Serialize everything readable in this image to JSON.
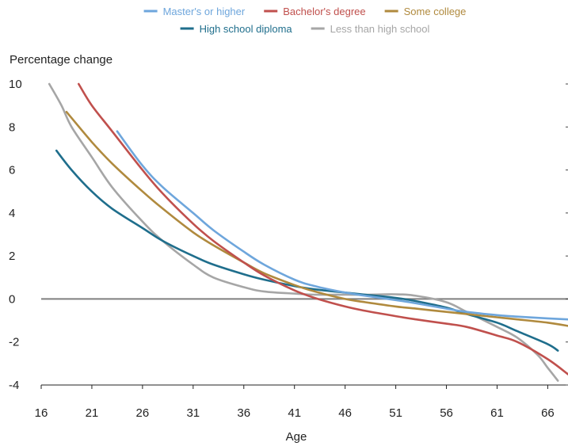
{
  "chart_data": {
    "type": "line",
    "title": "",
    "ylabel": "Percentage change",
    "xlabel": "Age",
    "xlim": [
      16,
      68
    ],
    "ylim": [
      -4,
      10
    ],
    "x_ticks": [
      16,
      21,
      26,
      31,
      36,
      41,
      46,
      51,
      56,
      61,
      66
    ],
    "y_ticks": [
      10,
      8,
      6,
      4,
      2,
      0,
      -2,
      -4
    ],
    "legend_position": "top-center",
    "grid": false,
    "zero_line": true,
    "series": [
      {
        "name": "Master's or higher",
        "color": "#6ea6dc",
        "x": [
          23.5,
          26,
          28,
          31,
          33,
          36,
          38,
          41,
          43,
          46,
          48,
          51,
          53,
          56,
          58,
          61,
          63,
          66,
          68
        ],
        "y": [
          7.8,
          6.2,
          5.2,
          4.0,
          3.2,
          2.2,
          1.6,
          0.9,
          0.6,
          0.3,
          0.15,
          -0.05,
          -0.2,
          -0.45,
          -0.6,
          -0.75,
          -0.82,
          -0.9,
          -0.95
        ]
      },
      {
        "name": "Bachelor's degree",
        "color": "#c0504d",
        "x": [
          19.7,
          21,
          23,
          26,
          28,
          31,
          33,
          36,
          38,
          41,
          43,
          46,
          48,
          51,
          53,
          56,
          58,
          61,
          63,
          66,
          68
        ],
        "y": [
          10.0,
          9.0,
          7.8,
          6.0,
          4.9,
          3.5,
          2.7,
          1.7,
          1.1,
          0.4,
          0.05,
          -0.35,
          -0.55,
          -0.8,
          -0.95,
          -1.15,
          -1.3,
          -1.7,
          -2.0,
          -2.8,
          -3.5
        ]
      },
      {
        "name": "Some college",
        "color": "#b08a3e",
        "x": [
          18.5,
          21,
          23,
          26,
          28,
          31,
          33,
          36,
          38,
          41,
          43,
          46,
          48,
          51,
          53,
          56,
          58,
          61,
          63,
          66,
          68
        ],
        "y": [
          8.7,
          7.3,
          6.3,
          5.0,
          4.2,
          3.1,
          2.5,
          1.7,
          1.2,
          0.65,
          0.35,
          0.0,
          -0.15,
          -0.35,
          -0.45,
          -0.6,
          -0.7,
          -0.85,
          -0.95,
          -1.1,
          -1.25
        ]
      },
      {
        "name": "High school diploma",
        "color": "#1f6e8c",
        "x": [
          17.5,
          19,
          21,
          23,
          26,
          28,
          31,
          33,
          36,
          38,
          41,
          43,
          46,
          48,
          51,
          53,
          56,
          58,
          61,
          63,
          66,
          67
        ],
        "y": [
          6.9,
          6.0,
          5.0,
          4.2,
          3.3,
          2.7,
          2.0,
          1.6,
          1.15,
          0.9,
          0.6,
          0.45,
          0.3,
          0.2,
          0.05,
          -0.1,
          -0.4,
          -0.7,
          -1.1,
          -1.5,
          -2.1,
          -2.4
        ]
      },
      {
        "name": "Less than high school",
        "color": "#a6a6a6",
        "x": [
          16.8,
          18,
          19,
          21,
          23,
          26,
          28,
          31,
          33,
          36,
          38,
          41,
          43,
          46,
          48,
          51,
          53,
          56,
          58,
          61,
          63,
          65,
          66,
          67
        ],
        "y": [
          10.0,
          9.0,
          8.0,
          6.6,
          5.2,
          3.6,
          2.7,
          1.6,
          1.0,
          0.55,
          0.35,
          0.25,
          0.2,
          0.2,
          0.2,
          0.22,
          0.15,
          -0.15,
          -0.6,
          -1.3,
          -1.8,
          -2.6,
          -3.2,
          -3.8
        ]
      }
    ]
  }
}
